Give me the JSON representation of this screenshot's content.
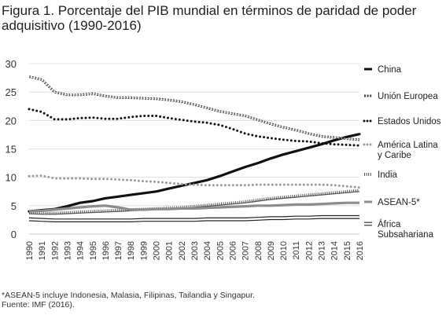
{
  "title": "Figura 1. Porcentaje del PIB mundial en términos de paridad de poder adquisitivo (1990-2016)",
  "footnote": "*ASEAN-5 incluye Indonesia, Malasia, Filipinas, Tailandia y Singapur.",
  "source": "Fuente: IMF (2016).",
  "chart_data": {
    "type": "line",
    "title": "Figura 1. Porcentaje del PIB mundial en términos de paridad de poder adquisitivo (1990-2016)",
    "xlabel": "",
    "ylabel": "",
    "ylim": [
      0,
      30
    ],
    "yticks": [
      0,
      5,
      10,
      15,
      20,
      25,
      30
    ],
    "grid": true,
    "legend": "right",
    "x": [
      "1990",
      "1991",
      "1992",
      "1993",
      "1994",
      "1995",
      "1996",
      "1997",
      "1998",
      "1999",
      "2000",
      "2001",
      "2002",
      "2003",
      "2004",
      "2005",
      "2006",
      "2007",
      "2008",
      "2009",
      "2010",
      "2011",
      "2012",
      "2013",
      "2014",
      "2015",
      "2016"
    ],
    "series": [
      {
        "name": "China",
        "style": "solid-thick",
        "color": "#111111",
        "values": [
          4.0,
          4.2,
          4.4,
          4.9,
          5.5,
          5.8,
          6.3,
          6.6,
          6.9,
          7.2,
          7.5,
          8.0,
          8.5,
          9.0,
          9.5,
          10.2,
          11.0,
          11.8,
          12.5,
          13.3,
          14.0,
          14.6,
          15.2,
          15.8,
          16.5,
          17.1,
          17.6
        ]
      },
      {
        "name": "Unión Europea",
        "style": "diamonds",
        "color": "#444444",
        "values": [
          27.7,
          27.2,
          25.0,
          24.5,
          24.5,
          24.7,
          24.3,
          24.0,
          24.0,
          23.9,
          23.8,
          23.6,
          23.3,
          22.8,
          22.2,
          21.6,
          21.2,
          20.8,
          20.1,
          19.4,
          18.8,
          18.3,
          17.7,
          17.2,
          17.0,
          16.8,
          16.6
        ]
      },
      {
        "name": "Estados Unidos",
        "style": "dotted-heavy",
        "color": "#111111",
        "values": [
          22.0,
          21.5,
          20.2,
          20.2,
          20.4,
          20.5,
          20.3,
          20.3,
          20.6,
          20.8,
          20.8,
          20.4,
          20.1,
          19.8,
          19.6,
          19.2,
          18.5,
          17.7,
          17.2,
          16.9,
          16.6,
          16.4,
          16.3,
          16.0,
          15.8,
          15.7,
          15.6
        ]
      },
      {
        "name": "América Latina y Caribe",
        "style": "dotted-light",
        "color": "#9a9a9a",
        "values": [
          10.2,
          10.3,
          9.8,
          9.8,
          9.8,
          9.7,
          9.7,
          9.6,
          9.5,
          9.3,
          9.2,
          9.0,
          8.8,
          8.7,
          8.6,
          8.6,
          8.6,
          8.6,
          8.7,
          8.7,
          8.7,
          8.7,
          8.7,
          8.7,
          8.6,
          8.4,
          8.2
        ]
      },
      {
        "name": "India",
        "style": "comb",
        "color": "#555555",
        "values": [
          3.6,
          3.5,
          3.5,
          3.6,
          3.7,
          3.8,
          3.9,
          4.0,
          4.1,
          4.2,
          4.3,
          4.4,
          4.5,
          4.7,
          4.9,
          5.1,
          5.3,
          5.5,
          5.8,
          6.1,
          6.3,
          6.5,
          6.7,
          6.9,
          7.1,
          7.3,
          7.5
        ]
      },
      {
        "name": "ASEAN-5*",
        "style": "solid-gray-thick",
        "color": "#8c8c8c",
        "values": [
          4.0,
          4.1,
          4.3,
          4.5,
          4.7,
          4.9,
          5.0,
          4.7,
          4.3,
          4.3,
          4.4,
          4.4,
          4.5,
          4.5,
          4.6,
          4.7,
          4.8,
          4.9,
          5.0,
          5.0,
          5.1,
          5.2,
          5.2,
          5.3,
          5.4,
          5.5,
          5.5
        ]
      },
      {
        "name": "África Subsahariana",
        "style": "double",
        "color": "#222222",
        "values": [
          2.6,
          2.5,
          2.4,
          2.4,
          2.4,
          2.4,
          2.4,
          2.4,
          2.4,
          2.5,
          2.5,
          2.5,
          2.5,
          2.5,
          2.6,
          2.6,
          2.6,
          2.6,
          2.7,
          2.8,
          2.8,
          2.9,
          2.9,
          3.0,
          3.0,
          3.0,
          3.0
        ]
      }
    ]
  }
}
